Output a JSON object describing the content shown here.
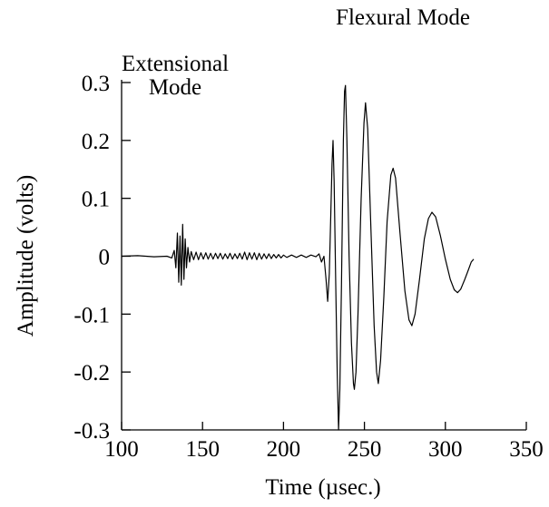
{
  "chart_data": {
    "type": "line",
    "title": "",
    "xlabel": "Time (µsec.)",
    "ylabel": "Amplitude (volts)",
    "xlim": [
      100,
      350
    ],
    "ylim": [
      -0.3,
      0.3
    ],
    "x_ticks": [
      100,
      150,
      200,
      250,
      300,
      350
    ],
    "x_tick_labels": [
      "100",
      "150",
      "200",
      "250",
      "300",
      "350"
    ],
    "y_ticks": [
      0.3,
      0.2,
      0.1,
      0,
      -0.1,
      -0.2,
      -0.3
    ],
    "y_tick_labels": [
      "0.3",
      "0.2",
      "0.1",
      "0",
      "-0.1",
      "-0.2",
      "-0.3"
    ],
    "grid": false,
    "annotations": [
      {
        "id": "extensional",
        "lines": [
          "Extensional",
          "Mode"
        ]
      },
      {
        "id": "flexural",
        "lines": [
          "Flexural Mode"
        ]
      }
    ],
    "series": [
      {
        "points": [
          [
            100,
            0
          ],
          [
            110,
            0.001
          ],
          [
            120,
            -0.001
          ],
          [
            128,
            0.0
          ],
          [
            131,
            -0.003
          ],
          [
            132.5,
            0.01
          ],
          [
            133.5,
            -0.02
          ],
          [
            134.5,
            0.04
          ],
          [
            135.3,
            -0.045
          ],
          [
            136.1,
            0.035
          ],
          [
            136.9,
            -0.05
          ],
          [
            137.7,
            0.055
          ],
          [
            138.5,
            -0.04
          ],
          [
            139.3,
            0.03
          ],
          [
            140.1,
            -0.02
          ],
          [
            141,
            0.015
          ],
          [
            142,
            -0.01
          ],
          [
            143,
            0.008
          ],
          [
            144.5,
            -0.006
          ],
          [
            146,
            0.007
          ],
          [
            147.5,
            -0.006
          ],
          [
            149,
            0.006
          ],
          [
            150.5,
            -0.005
          ],
          [
            152,
            0.006
          ],
          [
            153.5,
            -0.005
          ],
          [
            155,
            0.005
          ],
          [
            156.5,
            -0.005
          ],
          [
            158,
            0.005
          ],
          [
            159.5,
            -0.004
          ],
          [
            161,
            0.005
          ],
          [
            162.5,
            -0.005
          ],
          [
            164,
            0.004
          ],
          [
            165.5,
            -0.004
          ],
          [
            167,
            0.005
          ],
          [
            168.5,
            -0.005
          ],
          [
            170,
            0.004
          ],
          [
            171.5,
            -0.004
          ],
          [
            173,
            0.005
          ],
          [
            174.5,
            -0.005
          ],
          [
            176,
            0.007
          ],
          [
            177.5,
            -0.006
          ],
          [
            179,
            0.006
          ],
          [
            180.5,
            -0.005
          ],
          [
            182,
            0.006
          ],
          [
            183.5,
            -0.006
          ],
          [
            185,
            0.005
          ],
          [
            186.5,
            -0.005
          ],
          [
            188,
            0.004
          ],
          [
            189.5,
            -0.004
          ],
          [
            191,
            0.004
          ],
          [
            192.5,
            -0.004
          ],
          [
            194,
            0.003
          ],
          [
            195.5,
            -0.003
          ],
          [
            197,
            0.003
          ],
          [
            198.5,
            -0.003
          ],
          [
            200,
            0.002
          ],
          [
            202,
            -0.002
          ],
          [
            205,
            0.002
          ],
          [
            208,
            -0.002
          ],
          [
            211,
            0.002
          ],
          [
            214,
            -0.002
          ],
          [
            217,
            0.002
          ],
          [
            220,
            -0.001
          ],
          [
            222,
            0.004
          ],
          [
            223.5,
            -0.01
          ],
          [
            225,
            0.0
          ],
          [
            226.3,
            -0.04
          ],
          [
            227.3,
            -0.078
          ],
          [
            228.3,
            -0.03
          ],
          [
            229.2,
            0.07
          ],
          [
            230,
            0.16
          ],
          [
            230.6,
            0.2
          ],
          [
            231.3,
            0.13
          ],
          [
            232.3,
            -0.05
          ],
          [
            233.2,
            -0.2
          ],
          [
            234,
            -0.3
          ],
          [
            234.8,
            -0.23
          ],
          [
            235.8,
            -0.05
          ],
          [
            237,
            0.2
          ],
          [
            237.7,
            0.285
          ],
          [
            238.3,
            0.295
          ],
          [
            239.2,
            0.2
          ],
          [
            240.5,
            0.0
          ],
          [
            242,
            -0.15
          ],
          [
            243.2,
            -0.22
          ],
          [
            243.8,
            -0.23
          ],
          [
            244.8,
            -0.2
          ],
          [
            246,
            -0.1
          ],
          [
            248,
            0.1
          ],
          [
            249.7,
            0.23
          ],
          [
            250.7,
            0.265
          ],
          [
            252,
            0.22
          ],
          [
            254,
            0.05
          ],
          [
            256,
            -0.12
          ],
          [
            257.5,
            -0.2
          ],
          [
            258.6,
            -0.22
          ],
          [
            260,
            -0.18
          ],
          [
            262,
            -0.07
          ],
          [
            264,
            0.06
          ],
          [
            266.3,
            0.14
          ],
          [
            267.7,
            0.152
          ],
          [
            269.2,
            0.135
          ],
          [
            272,
            0.04
          ],
          [
            275,
            -0.06
          ],
          [
            277.5,
            -0.11
          ],
          [
            279.3,
            -0.12
          ],
          [
            281.3,
            -0.1
          ],
          [
            284,
            -0.04
          ],
          [
            287,
            0.03
          ],
          [
            289.5,
            0.065
          ],
          [
            291.7,
            0.076
          ],
          [
            294,
            0.068
          ],
          [
            297,
            0.035
          ],
          [
            300,
            -0.005
          ],
          [
            303,
            -0.04
          ],
          [
            305.5,
            -0.058
          ],
          [
            307.5,
            -0.063
          ],
          [
            309.5,
            -0.057
          ],
          [
            312,
            -0.04
          ],
          [
            314,
            -0.025
          ],
          [
            316,
            -0.01
          ],
          [
            317.5,
            -0.005
          ]
        ]
      }
    ]
  }
}
